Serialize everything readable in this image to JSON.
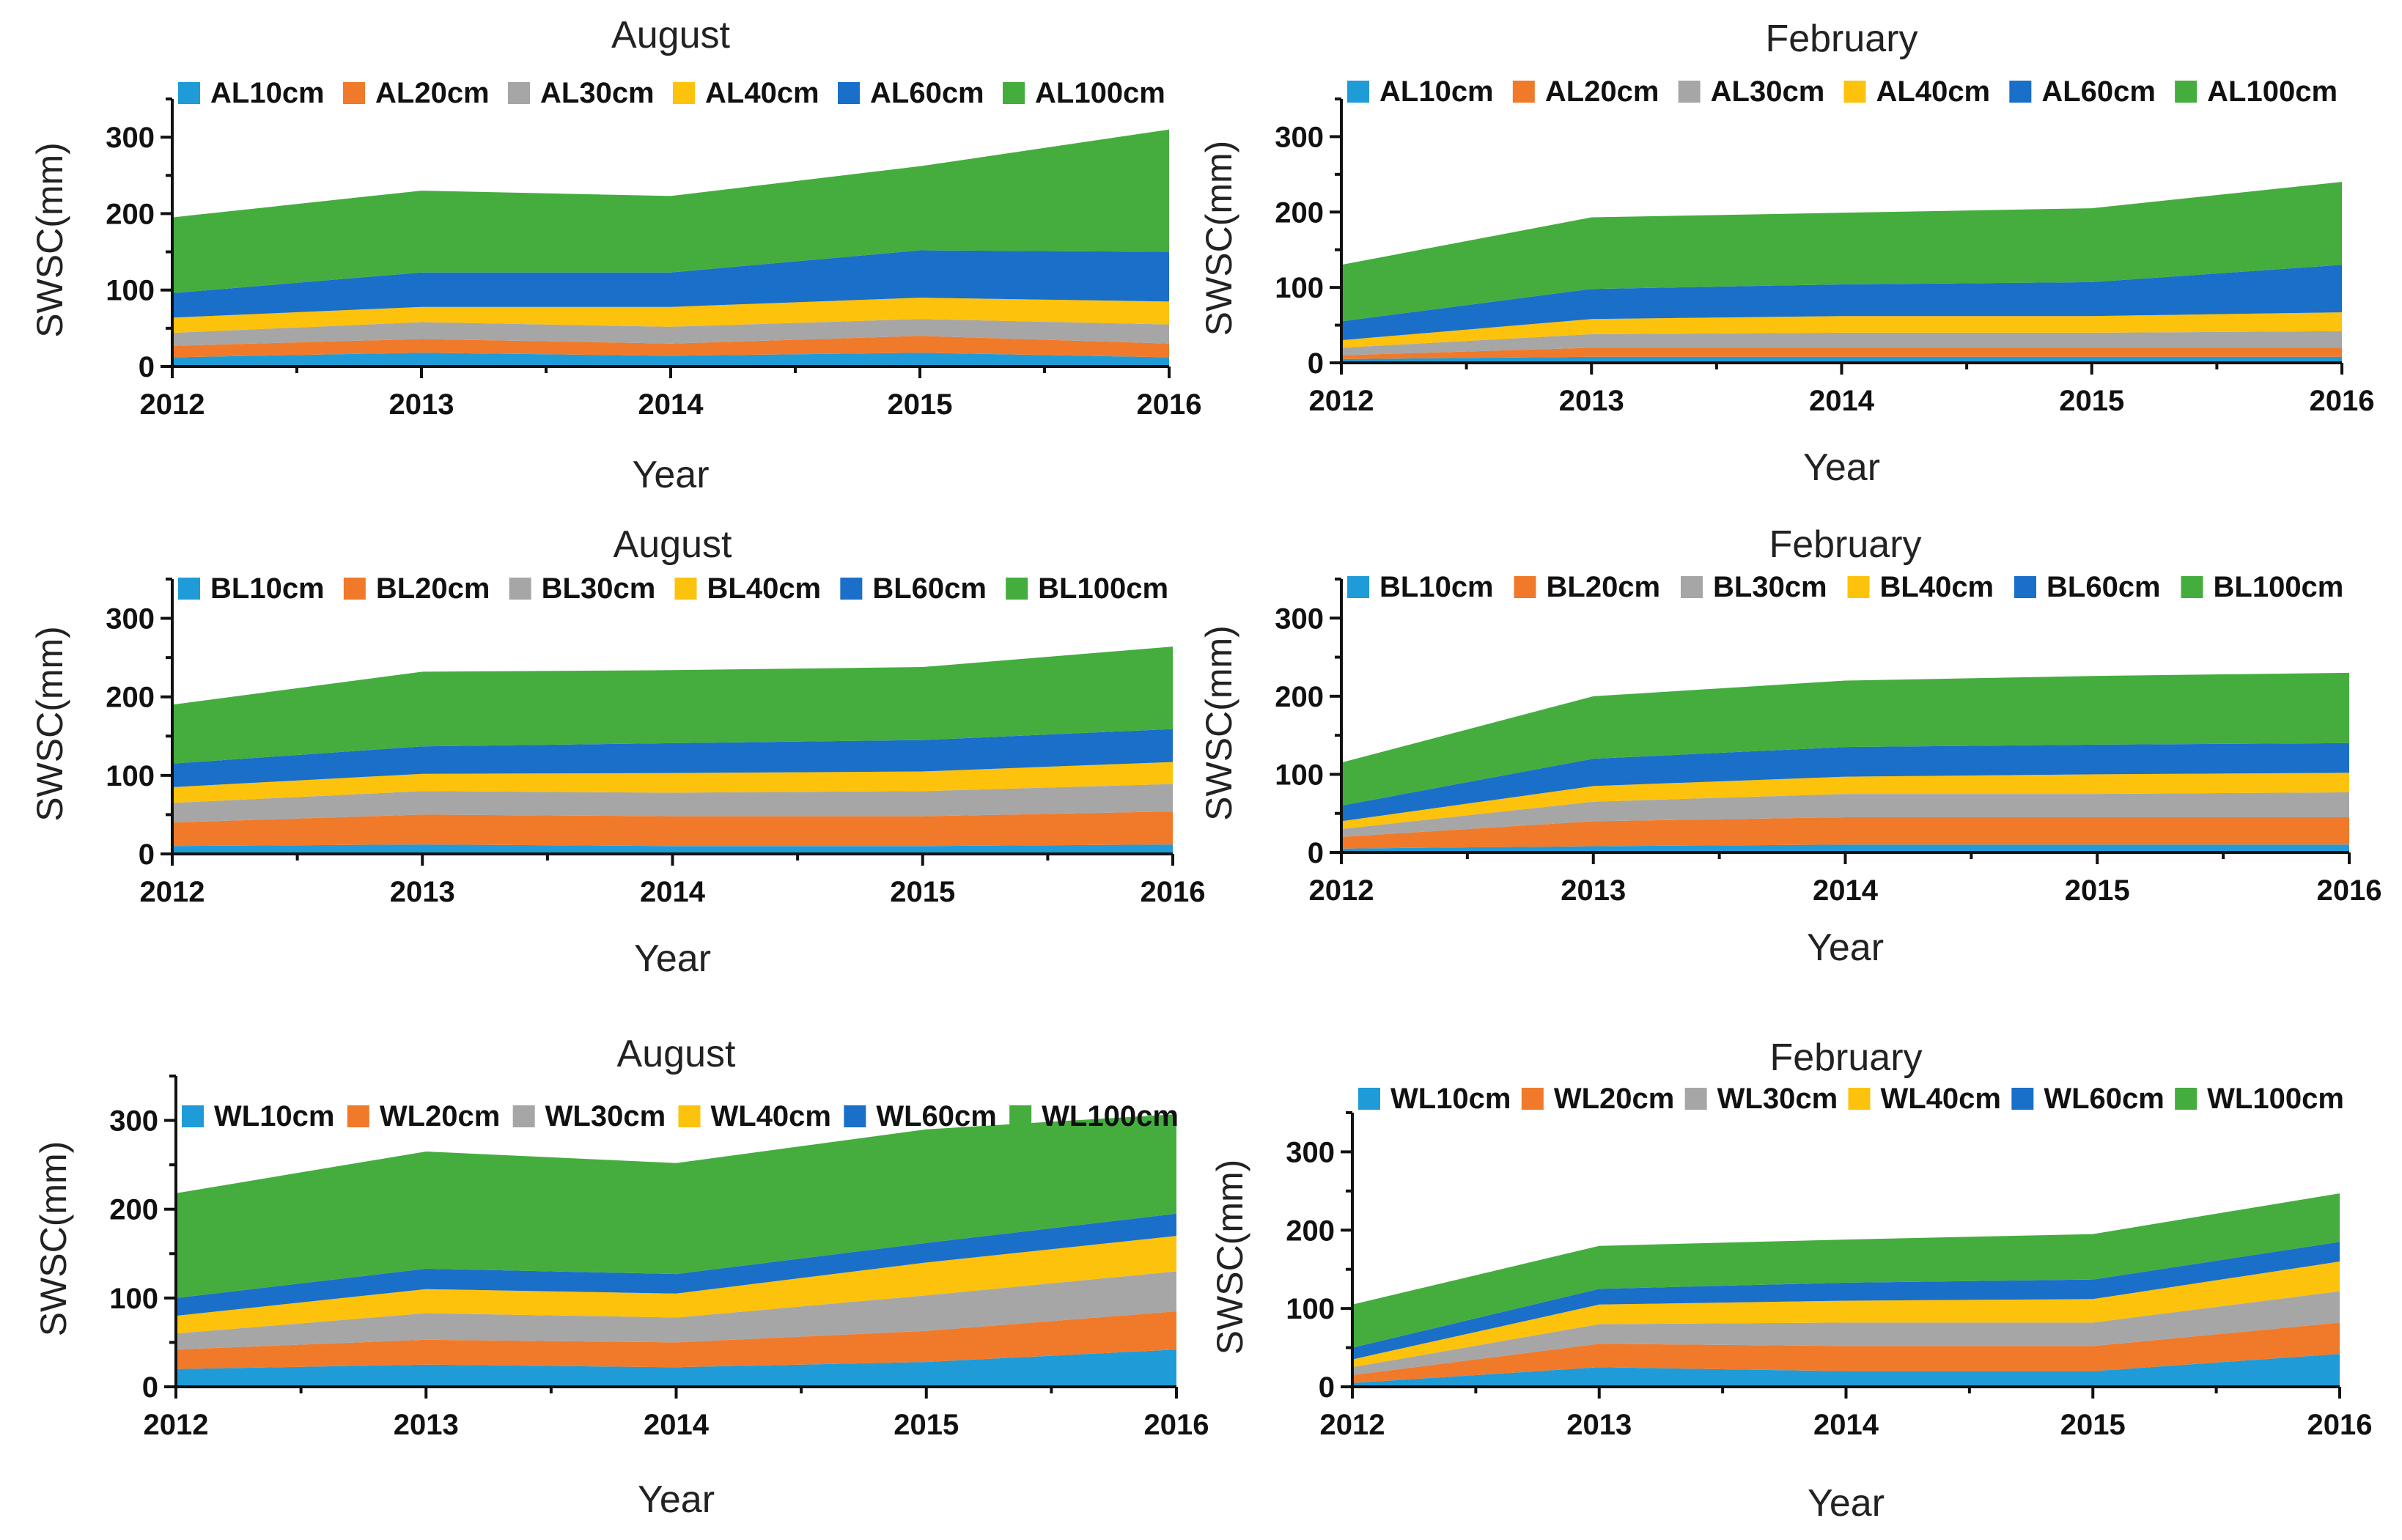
{
  "chart_data": [
    {
      "type": "area",
      "stacked": true,
      "title": "August",
      "xlabel": "Year",
      "ylabel": "SWSC(mm)",
      "x": [
        2012,
        2013,
        2014,
        2015,
        2016
      ],
      "ylim": [
        0,
        350
      ],
      "yticks": [
        0,
        100,
        200,
        300
      ],
      "legend_position": "top",
      "series": [
        {
          "name": "AL10cm",
          "color": "#1f9bd8",
          "values": [
            12,
            18,
            14,
            18,
            12
          ]
        },
        {
          "name": "AL20cm",
          "color": "#f07a2a",
          "values": [
            15,
            18,
            16,
            22,
            18
          ]
        },
        {
          "name": "AL30cm",
          "color": "#a6a6a6",
          "values": [
            17,
            22,
            22,
            22,
            25
          ]
        },
        {
          "name": "AL40cm",
          "color": "#fdc20c",
          "values": [
            20,
            20,
            26,
            28,
            30
          ]
        },
        {
          "name": "AL60cm",
          "color": "#1a6fc9",
          "values": [
            32,
            45,
            45,
            62,
            65
          ]
        },
        {
          "name": "AL100cm",
          "color": "#44ad3e",
          "values": [
            99,
            107,
            100,
            110,
            160
          ]
        }
      ]
    },
    {
      "type": "area",
      "stacked": true,
      "title": "February",
      "xlabel": "Year",
      "ylabel": "SWSC(mm)",
      "x": [
        2012,
        2013,
        2014,
        2015,
        2016
      ],
      "ylim": [
        0,
        350
      ],
      "yticks": [
        0,
        100,
        200,
        300
      ],
      "legend_position": "top",
      "series": [
        {
          "name": "AL10cm",
          "color": "#1f9bd8",
          "values": [
            5,
            8,
            8,
            8,
            8
          ]
        },
        {
          "name": "AL20cm",
          "color": "#f07a2a",
          "values": [
            5,
            12,
            12,
            12,
            12
          ]
        },
        {
          "name": "AL30cm",
          "color": "#a6a6a6",
          "values": [
            10,
            18,
            20,
            20,
            22
          ]
        },
        {
          "name": "AL40cm",
          "color": "#fdc20c",
          "values": [
            10,
            20,
            22,
            22,
            25
          ]
        },
        {
          "name": "AL60cm",
          "color": "#1a6fc9",
          "values": [
            25,
            40,
            42,
            45,
            63
          ]
        },
        {
          "name": "AL100cm",
          "color": "#44ad3e",
          "values": [
            75,
            95,
            95,
            98,
            110
          ]
        }
      ]
    },
    {
      "type": "area",
      "stacked": true,
      "title": "August",
      "xlabel": "Year",
      "ylabel": "SWSC(mm)",
      "x": [
        2012,
        2013,
        2014,
        2015,
        2016
      ],
      "ylim": [
        0,
        350
      ],
      "yticks": [
        0,
        100,
        200,
        300
      ],
      "legend_position": "top",
      "series": [
        {
          "name": "BL10cm",
          "color": "#1f9bd8",
          "values": [
            10,
            12,
            10,
            10,
            12
          ]
        },
        {
          "name": "BL20cm",
          "color": "#f07a2a",
          "values": [
            30,
            38,
            38,
            38,
            42
          ]
        },
        {
          "name": "BL30cm",
          "color": "#a6a6a6",
          "values": [
            25,
            30,
            30,
            32,
            35
          ]
        },
        {
          "name": "BL40cm",
          "color": "#fdc20c",
          "values": [
            20,
            22,
            25,
            25,
            28
          ]
        },
        {
          "name": "BL60cm",
          "color": "#1a6fc9",
          "values": [
            30,
            35,
            38,
            40,
            42
          ]
        },
        {
          "name": "BL100cm",
          "color": "#44ad3e",
          "values": [
            75,
            95,
            93,
            93,
            105
          ]
        }
      ]
    },
    {
      "type": "area",
      "stacked": true,
      "title": "February",
      "xlabel": "Year",
      "ylabel": "SWSC(mm)",
      "x": [
        2012,
        2013,
        2014,
        2015,
        2016
      ],
      "ylim": [
        0,
        350
      ],
      "yticks": [
        0,
        100,
        200,
        300
      ],
      "legend_position": "top",
      "series": [
        {
          "name": "BL10cm",
          "color": "#1f9bd8",
          "values": [
            5,
            8,
            10,
            10,
            10
          ]
        },
        {
          "name": "BL20cm",
          "color": "#f07a2a",
          "values": [
            15,
            32,
            35,
            35,
            35
          ]
        },
        {
          "name": "BL30cm",
          "color": "#a6a6a6",
          "values": [
            10,
            25,
            30,
            30,
            32
          ]
        },
        {
          "name": "BL40cm",
          "color": "#fdc20c",
          "values": [
            10,
            20,
            22,
            25,
            25
          ]
        },
        {
          "name": "BL60cm",
          "color": "#1a6fc9",
          "values": [
            20,
            35,
            38,
            38,
            38
          ]
        },
        {
          "name": "BL100cm",
          "color": "#44ad3e",
          "values": [
            55,
            80,
            85,
            88,
            90
          ]
        }
      ]
    },
    {
      "type": "area",
      "stacked": true,
      "title": "August",
      "xlabel": "Year",
      "ylabel": "SWSC(mm)",
      "x": [
        2012,
        2013,
        2014,
        2015,
        2016
      ],
      "ylim": [
        0,
        350
      ],
      "yticks": [
        0,
        100,
        200,
        300
      ],
      "legend_position": "top",
      "series": [
        {
          "name": "WL10cm",
          "color": "#1f9bd8",
          "values": [
            20,
            25,
            22,
            28,
            42
          ]
        },
        {
          "name": "WL20cm",
          "color": "#f07a2a",
          "values": [
            22,
            28,
            28,
            35,
            43
          ]
        },
        {
          "name": "WL30cm",
          "color": "#a6a6a6",
          "values": [
            18,
            30,
            28,
            40,
            45
          ]
        },
        {
          "name": "WL40cm",
          "color": "#fdc20c",
          "values": [
            20,
            27,
            27,
            37,
            40
          ]
        },
        {
          "name": "WL60cm",
          "color": "#1a6fc9",
          "values": [
            20,
            23,
            22,
            22,
            25
          ]
        },
        {
          "name": "WL100cm",
          "color": "#44ad3e",
          "values": [
            118,
            132,
            125,
            128,
            112
          ]
        }
      ]
    },
    {
      "type": "area",
      "stacked": true,
      "title": "February",
      "xlabel": "Year",
      "ylabel": "SWSC(mm)",
      "x": [
        2012,
        2013,
        2014,
        2015,
        2016
      ],
      "ylim": [
        0,
        350
      ],
      "yticks": [
        0,
        100,
        200,
        300
      ],
      "legend_position": "top",
      "series": [
        {
          "name": "WL10cm",
          "color": "#1f9bd8",
          "values": [
            5,
            25,
            20,
            20,
            42
          ]
        },
        {
          "name": "WL20cm",
          "color": "#f07a2a",
          "values": [
            10,
            30,
            32,
            32,
            40
          ]
        },
        {
          "name": "WL30cm",
          "color": "#a6a6a6",
          "values": [
            10,
            25,
            30,
            30,
            40
          ]
        },
        {
          "name": "WL40cm",
          "color": "#fdc20c",
          "values": [
            10,
            25,
            28,
            30,
            38
          ]
        },
        {
          "name": "WL60cm",
          "color": "#1a6fc9",
          "values": [
            15,
            20,
            23,
            25,
            25
          ]
        },
        {
          "name": "WL100cm",
          "color": "#44ad3e",
          "values": [
            55,
            55,
            55,
            58,
            62
          ]
        }
      ]
    }
  ]
}
